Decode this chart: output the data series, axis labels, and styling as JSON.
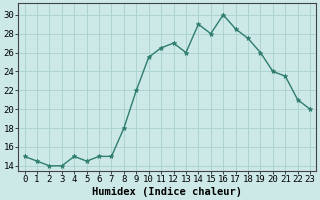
{
  "x": [
    0,
    1,
    2,
    3,
    4,
    5,
    6,
    7,
    8,
    9,
    10,
    11,
    12,
    13,
    14,
    15,
    16,
    17,
    18,
    19,
    20,
    21,
    22,
    23
  ],
  "y": [
    15,
    14.5,
    14,
    14,
    15,
    14.5,
    15,
    15,
    18,
    22,
    25.5,
    26.5,
    27,
    26,
    29,
    28,
    30,
    28.5,
    27.5,
    26,
    24,
    23.5,
    21,
    20
  ],
  "line_color": "#2e7d6e",
  "marker": "*",
  "marker_size": 3.5,
  "bg_color": "#cce9e7",
  "grid_color": "#aed4d1",
  "xlabel": "Humidex (Indice chaleur)",
  "ytick_labels": [
    "14",
    "16",
    "18",
    "20",
    "22",
    "24",
    "26",
    "28",
    "30"
  ],
  "ytick_vals": [
    14,
    16,
    18,
    20,
    22,
    24,
    26,
    28,
    30
  ],
  "xtick_labels": [
    "0",
    "1",
    "2",
    "3",
    "4",
    "5",
    "6",
    "7",
    "8",
    "9",
    "10",
    "11",
    "12",
    "13",
    "14",
    "15",
    "16",
    "17",
    "18",
    "19",
    "20",
    "21",
    "22",
    "23"
  ],
  "ylim": [
    13.5,
    31.2
  ],
  "xlim": [
    -0.5,
    23.5
  ],
  "xlabel_fontsize": 7.5,
  "tick_fontsize": 6.5,
  "spine_color": "#444444",
  "line_width": 1.0
}
